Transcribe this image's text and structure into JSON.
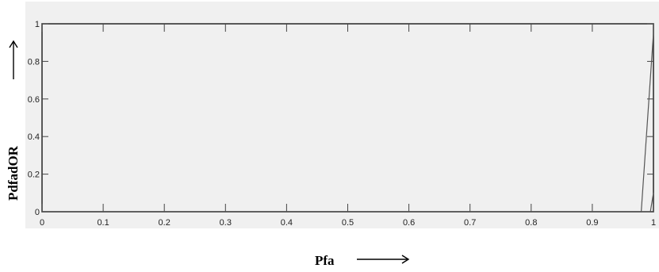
{
  "chart_data": {
    "type": "line",
    "title": "",
    "xlabel": "Pfa",
    "ylabel": "PdfadOR",
    "xlim": [
      0,
      1
    ],
    "ylim": [
      0,
      1
    ],
    "xticks": [
      0,
      0.1,
      0.2,
      0.3,
      0.4,
      0.5,
      0.6,
      0.7,
      0.8,
      0.9,
      1
    ],
    "xtick_labels": [
      "0",
      "0.1",
      "0.2",
      "0.3",
      "0.4",
      "0.5",
      "0.6",
      "0.7",
      "0.8",
      "0.9",
      "1"
    ],
    "yticks": [
      0,
      0.2,
      0.4,
      0.6,
      0.8,
      1
    ],
    "ytick_labels": [
      "0",
      "0.2",
      "0.4",
      "0.6",
      "0.8",
      "1"
    ],
    "grid": false,
    "series": [
      {
        "x": [
          0,
          0.98,
          1,
          1
        ],
        "y": [
          0,
          0,
          0.95,
          1
        ]
      },
      {
        "x": [
          0,
          0.995,
          1
        ],
        "y": [
          0,
          0,
          0.1
        ]
      }
    ]
  }
}
